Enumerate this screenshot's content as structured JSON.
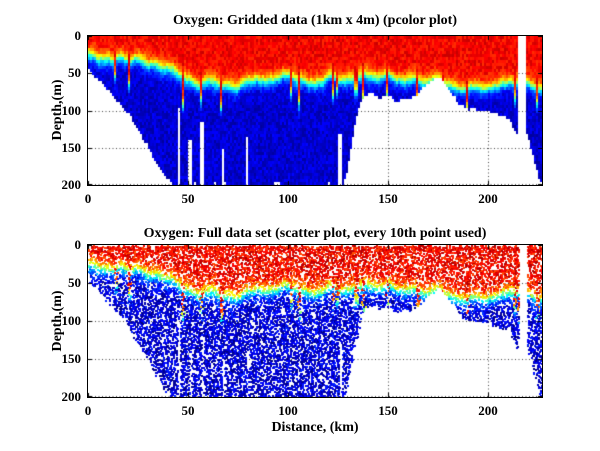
{
  "figure": {
    "background": "#ffffff",
    "grid_style": "dotted",
    "grid_color": "#444444"
  },
  "chart_data": [
    {
      "type": "heatmap",
      "title": "Oxygen: Gridded data (1km x 4m) (pcolor plot)",
      "xlabel": "",
      "ylabel": "Depth,(m)",
      "x_ticks": [
        0,
        50,
        100,
        150,
        200
      ],
      "y_ticks": [
        0,
        50,
        100,
        150,
        200
      ],
      "xlim": [
        0,
        227
      ],
      "ylim": [
        0,
        200
      ],
      "y_axis_reversed": true,
      "grid": true,
      "colormap": "jet",
      "cell_size": {
        "x_km": 1,
        "z_m": 4
      },
      "high_value_color": "#d10000",
      "low_value_color": "#0000d1",
      "legend": "none"
    },
    {
      "type": "scatter",
      "title": "Oxygen: Full data set (scatter plot, every 10th point used)",
      "xlabel": "Distance, (km)",
      "ylabel": "Depth,(m)",
      "x_ticks": [
        0,
        50,
        100,
        150,
        200
      ],
      "y_ticks": [
        0,
        50,
        100,
        150,
        200
      ],
      "xlim": [
        0,
        227
      ],
      "ylim": [
        0,
        200
      ],
      "y_axis_reversed": true,
      "grid": true,
      "colormap": "jet",
      "marker": "2px square",
      "fill_fraction": 0.55,
      "legend": "none"
    }
  ],
  "field_model": {
    "description": "Dissolved-oxygen section: high (red) at surface grading through yellow/green/cyan to low (blue) at depth; white = below seafloor or missing profiles",
    "seafloor_depth_profile": [
      [
        0,
        45
      ],
      [
        4,
        55
      ],
      [
        8,
        66
      ],
      [
        12,
        78
      ],
      [
        16,
        90
      ],
      [
        20,
        104
      ],
      [
        24,
        122
      ],
      [
        28,
        140
      ],
      [
        32,
        158
      ],
      [
        36,
        178
      ],
      [
        40,
        194
      ],
      [
        43,
        200
      ],
      [
        127,
        200
      ],
      [
        129,
        188
      ],
      [
        131,
        162
      ],
      [
        133,
        128
      ],
      [
        135,
        100
      ],
      [
        137,
        88
      ],
      [
        140,
        78
      ],
      [
        143,
        80
      ],
      [
        146,
        85
      ],
      [
        149,
        79
      ],
      [
        152,
        83
      ],
      [
        155,
        87
      ],
      [
        158,
        83
      ],
      [
        161,
        87
      ],
      [
        164,
        79
      ],
      [
        167,
        71
      ],
      [
        170,
        64
      ],
      [
        173,
        58
      ],
      [
        176,
        53
      ],
      [
        178,
        60
      ],
      [
        180,
        70
      ],
      [
        183,
        82
      ],
      [
        186,
        92
      ],
      [
        189,
        96
      ],
      [
        193,
        99
      ],
      [
        197,
        102
      ],
      [
        201,
        100
      ],
      [
        205,
        104
      ],
      [
        208,
        107
      ],
      [
        211,
        114
      ],
      [
        213,
        126
      ],
      [
        214.5,
        134
      ],
      [
        216,
        130
      ],
      [
        218,
        120
      ],
      [
        219.8,
        130
      ],
      [
        221,
        145
      ],
      [
        223,
        165
      ],
      [
        225,
        185
      ],
      [
        226.5,
        198
      ],
      [
        227,
        200
      ]
    ],
    "oxycline_depth_profile": [
      [
        0,
        26
      ],
      [
        5,
        29
      ],
      [
        10,
        31
      ],
      [
        15,
        32
      ],
      [
        20,
        34
      ],
      [
        25,
        36
      ],
      [
        30,
        38
      ],
      [
        35,
        40
      ],
      [
        40,
        44
      ],
      [
        45,
        52
      ],
      [
        50,
        58
      ],
      [
        55,
        66
      ],
      [
        60,
        60
      ],
      [
        65,
        63
      ],
      [
        70,
        66
      ],
      [
        75,
        72
      ],
      [
        80,
        64
      ],
      [
        85,
        60
      ],
      [
        90,
        58
      ],
      [
        95,
        56
      ],
      [
        100,
        56
      ],
      [
        105,
        60
      ],
      [
        110,
        66
      ],
      [
        115,
        60
      ],
      [
        120,
        56
      ],
      [
        125,
        58
      ],
      [
        130,
        60
      ],
      [
        135,
        56
      ],
      [
        140,
        50
      ],
      [
        145,
        55
      ],
      [
        150,
        52
      ],
      [
        155,
        58
      ],
      [
        160,
        54
      ],
      [
        165,
        58
      ],
      [
        170,
        62
      ],
      [
        175,
        58
      ],
      [
        180,
        64
      ],
      [
        185,
        70
      ],
      [
        190,
        72
      ],
      [
        195,
        69
      ],
      [
        200,
        71
      ],
      [
        205,
        69
      ],
      [
        210,
        64
      ],
      [
        214,
        62
      ],
      [
        218,
        58
      ],
      [
        221,
        62
      ],
      [
        224,
        70
      ],
      [
        227,
        74
      ]
    ],
    "transition_halfwidth_m": 11,
    "data_gap_columns": [
      {
        "x_km": 45.3,
        "half_width_km": 0.55,
        "gap_below_depth_m": 96
      },
      {
        "x_km": 51.0,
        "half_width_km": 0.55,
        "gap_below_depth_m": 140
      },
      {
        "x_km": 57.0,
        "half_width_km": 0.55,
        "gap_below_depth_m": 118
      },
      {
        "x_km": 67.5,
        "half_width_km": 0.55,
        "gap_below_depth_m": 152
      },
      {
        "x_km": 79.5,
        "half_width_km": 0.55,
        "gap_below_depth_m": 138
      },
      {
        "x_km": 126.0,
        "half_width_km": 0.7,
        "gap_below_depth_m": 131
      },
      {
        "x_km": 217.3,
        "half_width_km": 2.1,
        "gap_below_depth_m": 0
      }
    ]
  }
}
